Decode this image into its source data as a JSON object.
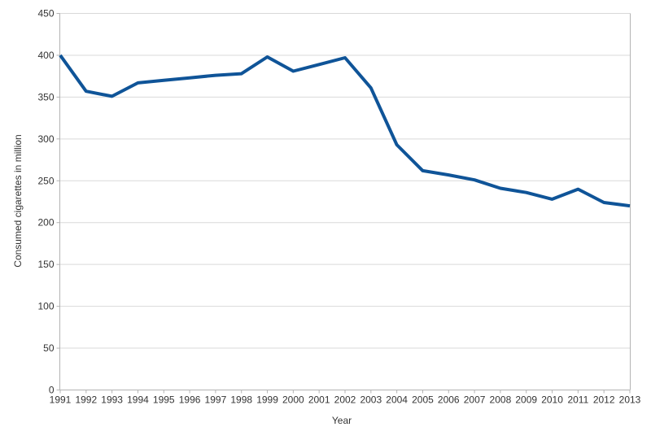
{
  "chart_data": {
    "type": "line",
    "title": "",
    "xlabel": "Year",
    "ylabel": "Consumed cigarettes in million",
    "x": [
      1991,
      1992,
      1993,
      1994,
      1995,
      1996,
      1997,
      1998,
      1999,
      2000,
      2001,
      2002,
      2003,
      2004,
      2005,
      2006,
      2007,
      2008,
      2009,
      2010,
      2011,
      2012,
      2013
    ],
    "series": [
      {
        "values": [
          400,
          357,
          351,
          367,
          370,
          373,
          376,
          378,
          398,
          381,
          389,
          397,
          361,
          293,
          262,
          257,
          251,
          241,
          236,
          228,
          240,
          224,
          220
        ],
        "color": "#0F5498"
      }
    ],
    "ylim": [
      0,
      450
    ],
    "yticks": [
      0,
      50,
      100,
      150,
      200,
      250,
      300,
      350,
      400,
      450
    ],
    "grid": true,
    "legend_position": "none"
  },
  "style": {
    "background": "#ffffff",
    "grid_color": "#d9d9d9",
    "axis_color": "#b3b3b3",
    "text_color": "#333333",
    "line_width": 4
  }
}
